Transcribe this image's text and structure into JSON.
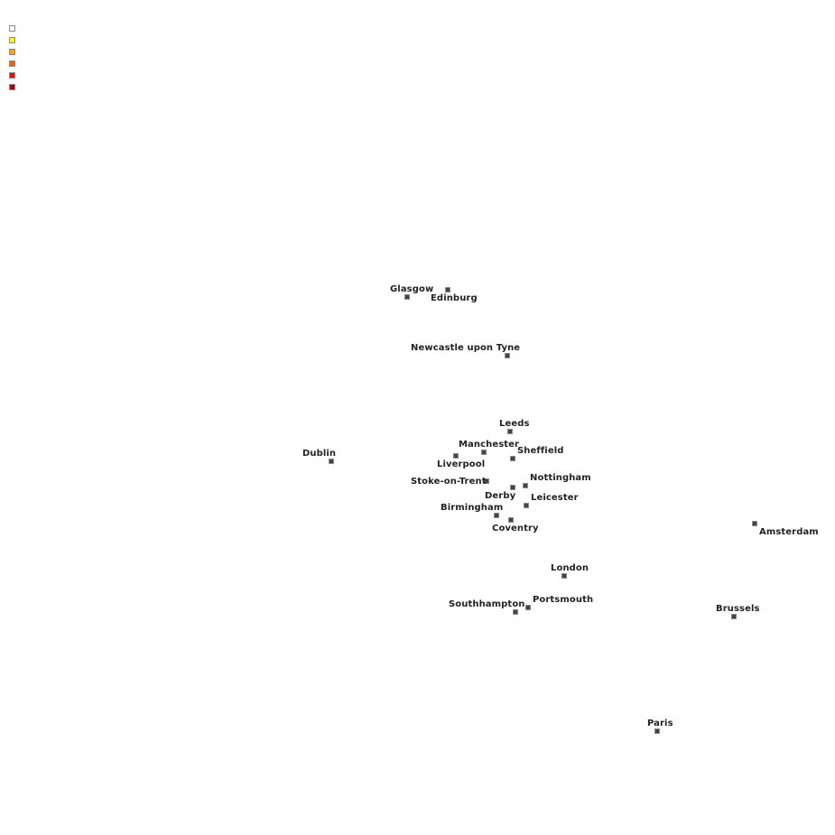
{
  "legend": {
    "colors": [
      "#ffffff",
      "#ffff00",
      "#ffa500",
      "#ff6000",
      "#ff0000",
      "#b00000"
    ]
  },
  "marker_color": "#444444",
  "cities": [
    {
      "name": "Glasgow"
    },
    {
      "name": "Edinburg"
    },
    {
      "name": "Newcastle upon Tyne"
    },
    {
      "name": "Leeds"
    },
    {
      "name": "Manchester"
    },
    {
      "name": "Liverpool"
    },
    {
      "name": "Sheffield"
    },
    {
      "name": "Dublin"
    },
    {
      "name": "Stoke-on-Trent"
    },
    {
      "name": "Nottingham"
    },
    {
      "name": "Derby"
    },
    {
      "name": "Leicester"
    },
    {
      "name": "Birmingham"
    },
    {
      "name": "Coventry"
    },
    {
      "name": "Amsterdam"
    },
    {
      "name": "London"
    },
    {
      "name": "Portsmouth"
    },
    {
      "name": "Southhampton"
    },
    {
      "name": "Brussels"
    },
    {
      "name": "Paris"
    }
  ]
}
